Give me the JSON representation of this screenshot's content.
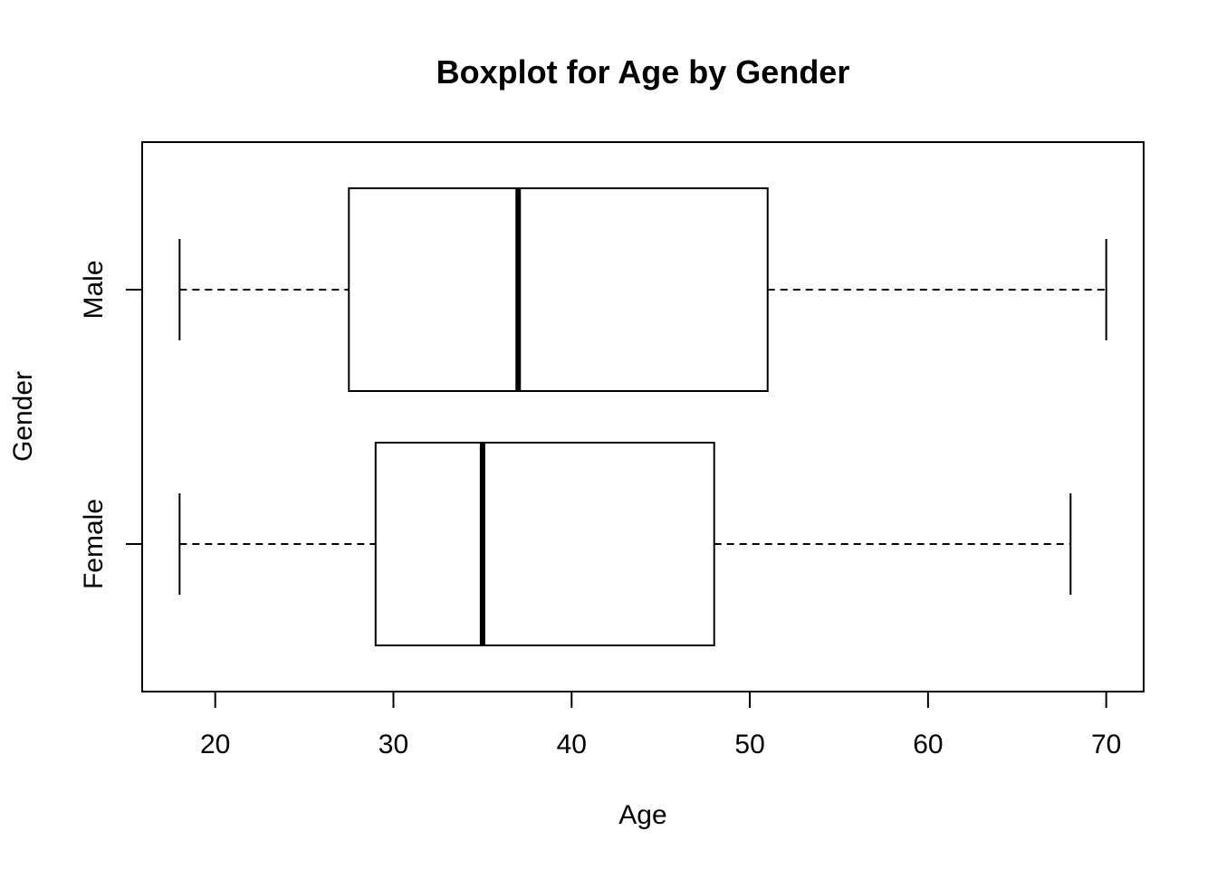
{
  "chart_data": {
    "type": "boxplot",
    "orientation": "horizontal",
    "title": "Boxplot for Age by Gender",
    "xlabel": "Age",
    "ylabel": "Gender",
    "xlim": [
      15.9,
      72.1
    ],
    "xticks": [
      20,
      30,
      40,
      50,
      60,
      70
    ],
    "grid": false,
    "legend": "none",
    "categories": [
      "Female",
      "Male"
    ],
    "boxes": [
      {
        "category": "Female",
        "min": 18,
        "q1": 29,
        "median": 35,
        "q3": 48,
        "max": 68
      },
      {
        "category": "Male",
        "min": 18,
        "q1": 27.5,
        "median": 37,
        "q3": 51,
        "max": 70
      }
    ]
  }
}
